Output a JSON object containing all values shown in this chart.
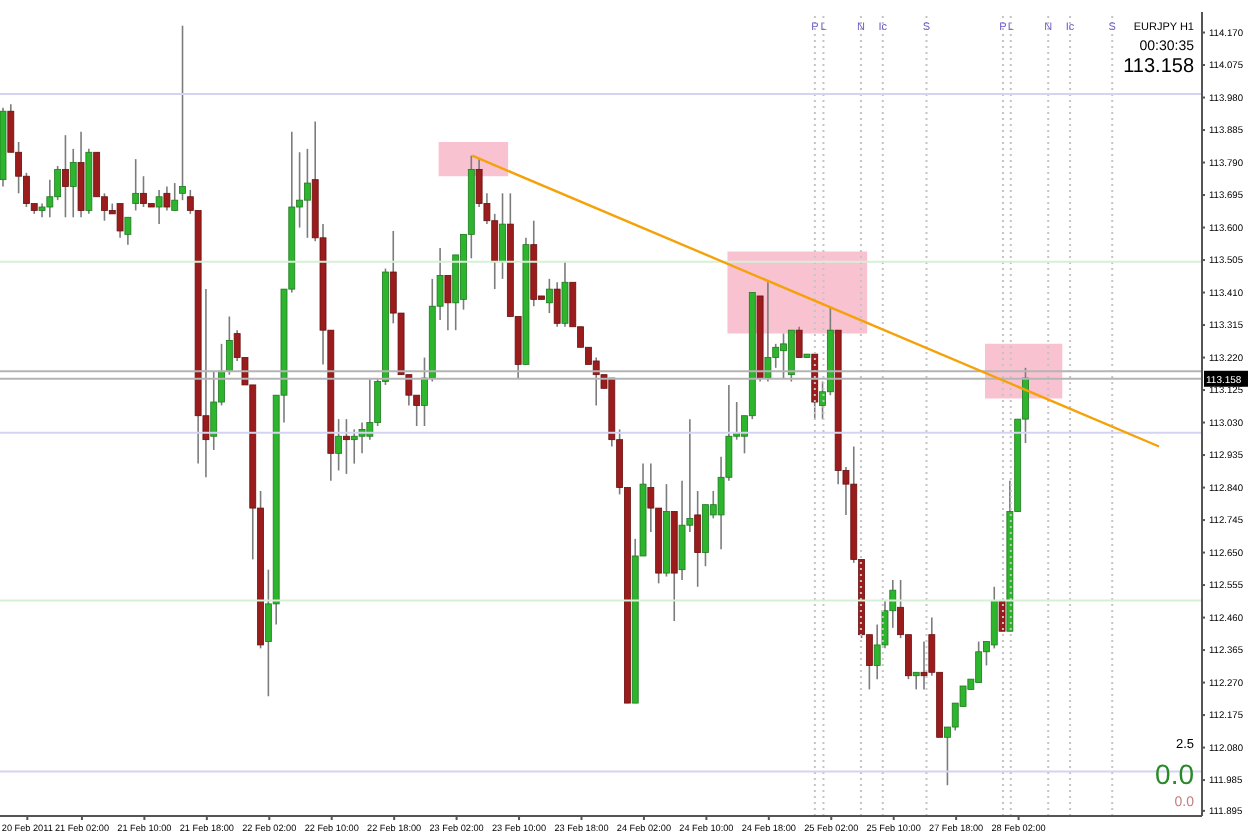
{
  "chart_data": {
    "type": "candlestick",
    "categories": [
      null,
      null,
      null,
      "20 Feb 2011",
      null,
      null,
      null,
      null,
      null,
      null,
      "21 Feb 02:00",
      null,
      null,
      null,
      null,
      null,
      null,
      null,
      "21 Feb 10:00",
      null,
      null,
      null,
      null,
      null,
      null,
      null,
      "21 Feb 18:00",
      null,
      null,
      null,
      null,
      null,
      null,
      null,
      "22 Feb 02:00",
      null,
      null,
      null,
      null,
      null,
      null,
      null,
      "22 Feb 10:00",
      null,
      null,
      null,
      null,
      null,
      null,
      null,
      "22 Feb 18:00",
      null,
      null,
      null,
      null,
      null,
      null,
      null,
      "23 Feb 02:00",
      null,
      null,
      null,
      null,
      null,
      null,
      null,
      "23 Feb 10:00",
      null,
      null,
      null,
      null,
      null,
      null,
      null,
      "23 Feb 18:00",
      null,
      null,
      null,
      null,
      null,
      null,
      null,
      "24 Feb 02:00",
      null,
      null,
      null,
      null,
      null,
      null,
      null,
      "24 Feb 10:00",
      null,
      null,
      null,
      null,
      null,
      null,
      null,
      "24 Feb 18:00",
      null,
      null,
      null,
      null,
      null,
      null,
      null,
      "25 Feb 02:00",
      null,
      null,
      null,
      null,
      null,
      null,
      null,
      "25 Feb 10:00",
      null,
      null,
      null,
      null,
      null,
      null,
      null,
      "27 Feb 18:00",
      null,
      null,
      null,
      null,
      null,
      null,
      null,
      "28 Feb 02:00",
      null,
      null,
      null,
      null,
      null,
      null,
      null,
      null,
      null,
      null,
      null,
      null,
      null,
      null,
      null,
      null,
      null,
      null,
      null,
      null,
      null,
      null,
      null
    ],
    "ohlc": [
      [
        113.74,
        113.95,
        113.72,
        113.94
      ],
      [
        113.94,
        113.96,
        113.82,
        113.82
      ],
      [
        113.82,
        113.85,
        113.7,
        113.75
      ],
      [
        113.75,
        113.76,
        113.66,
        113.67
      ],
      [
        113.67,
        113.67,
        113.64,
        113.65
      ],
      [
        113.65,
        113.67,
        113.63,
        113.66
      ],
      [
        113.66,
        113.74,
        113.63,
        113.69
      ],
      [
        113.69,
        113.78,
        113.68,
        113.77
      ],
      [
        113.77,
        113.87,
        113.63,
        113.72
      ],
      [
        113.72,
        113.83,
        113.63,
        113.79
      ],
      [
        113.79,
        113.88,
        113.63,
        113.65
      ],
      [
        113.65,
        113.83,
        113.64,
        113.82
      ],
      [
        113.82,
        113.82,
        113.69,
        113.69
      ],
      [
        113.69,
        113.7,
        113.62,
        113.65
      ],
      [
        113.65,
        113.67,
        113.64,
        113.64
      ],
      [
        113.67,
        113.67,
        113.57,
        113.59
      ],
      [
        113.58,
        113.63,
        113.55,
        113.63
      ],
      [
        113.67,
        113.8,
        113.65,
        113.7
      ],
      [
        113.7,
        113.75,
        113.66,
        113.67
      ],
      [
        113.67,
        113.67,
        113.66,
        113.66
      ],
      [
        113.66,
        113.71,
        113.61,
        113.69
      ],
      [
        113.7,
        113.72,
        113.65,
        113.66
      ],
      [
        113.65,
        113.73,
        113.65,
        113.68
      ],
      [
        113.7,
        114.19,
        113.68,
        113.72
      ],
      [
        113.69,
        113.71,
        113.64,
        113.65
      ],
      [
        113.65,
        113.65,
        112.91,
        113.05
      ],
      [
        113.05,
        113.42,
        112.87,
        112.98
      ],
      [
        112.99,
        113.18,
        112.95,
        113.09
      ],
      [
        113.09,
        113.26,
        113.08,
        113.18
      ],
      [
        113.18,
        113.34,
        113.17,
        113.27
      ],
      [
        113.29,
        113.3,
        113.21,
        113.22
      ],
      [
        113.22,
        113.22,
        113.14,
        113.14
      ],
      [
        113.14,
        113.14,
        112.63,
        112.78
      ],
      [
        112.78,
        112.83,
        112.37,
        112.38
      ],
      [
        112.39,
        112.6,
        112.23,
        112.5
      ],
      [
        112.5,
        113.11,
        112.44,
        113.11
      ],
      [
        113.11,
        113.42,
        113.03,
        113.42
      ],
      [
        113.42,
        113.88,
        113.41,
        113.66
      ],
      [
        113.66,
        113.82,
        113.6,
        113.68
      ],
      [
        113.68,
        113.83,
        113.57,
        113.73
      ],
      [
        113.74,
        113.91,
        113.56,
        113.57
      ],
      [
        113.57,
        113.61,
        113.2,
        113.3
      ],
      [
        113.3,
        113.3,
        112.86,
        112.94
      ],
      [
        112.94,
        113.04,
        112.89,
        112.99
      ],
      [
        112.99,
        113.04,
        112.88,
        112.98
      ],
      [
        112.98,
        113.01,
        112.91,
        112.99
      ],
      [
        112.99,
        113.03,
        112.94,
        113.01
      ],
      [
        112.99,
        113.16,
        112.98,
        113.03
      ],
      [
        113.03,
        113.16,
        113.02,
        113.15
      ],
      [
        113.15,
        113.48,
        113.14,
        113.47
      ],
      [
        113.47,
        113.59,
        113.32,
        113.35
      ],
      [
        113.35,
        113.35,
        113.17,
        113.17
      ],
      [
        113.17,
        113.17,
        113.08,
        113.11
      ],
      [
        113.11,
        113.11,
        113.02,
        113.08
      ],
      [
        113.08,
        113.22,
        113.02,
        113.16
      ],
      [
        113.16,
        113.45,
        113.15,
        113.37
      ],
      [
        113.37,
        113.54,
        113.33,
        113.46
      ],
      [
        113.46,
        113.46,
        113.3,
        113.38
      ],
      [
        113.38,
        113.52,
        113.3,
        113.52
      ],
      [
        113.39,
        113.58,
        113.36,
        113.58
      ],
      [
        113.58,
        113.81,
        113.51,
        113.77
      ],
      [
        113.77,
        113.8,
        113.66,
        113.67
      ],
      [
        113.67,
        113.7,
        113.61,
        113.62
      ],
      [
        113.62,
        113.64,
        113.42,
        113.5
      ],
      [
        113.5,
        113.7,
        113.45,
        113.61
      ],
      [
        113.61,
        113.7,
        113.34,
        113.34
      ],
      [
        113.34,
        113.34,
        113.16,
        113.2
      ],
      [
        113.2,
        113.57,
        113.2,
        113.55
      ],
      [
        113.55,
        113.62,
        113.37,
        113.39
      ],
      [
        113.4,
        113.4,
        113.39,
        113.39
      ],
      [
        113.38,
        113.45,
        113.35,
        113.42
      ],
      [
        113.42,
        113.44,
        113.31,
        113.32
      ],
      [
        113.32,
        113.5,
        113.31,
        113.44
      ],
      [
        113.44,
        113.44,
        113.31,
        113.31
      ],
      [
        113.31,
        113.31,
        113.25,
        113.25
      ],
      [
        113.25,
        113.25,
        113.2,
        113.2
      ],
      [
        113.21,
        113.22,
        113.08,
        113.17
      ],
      [
        113.17,
        113.17,
        113.13,
        113.13
      ],
      [
        113.16,
        113.16,
        112.96,
        112.98
      ],
      [
        112.98,
        113.01,
        112.82,
        112.84
      ],
      [
        112.84,
        112.84,
        112.21,
        112.21
      ],
      [
        112.21,
        112.69,
        112.21,
        112.64
      ],
      [
        112.64,
        112.91,
        112.64,
        112.85
      ],
      [
        112.84,
        112.91,
        112.71,
        112.78
      ],
      [
        112.78,
        112.78,
        112.56,
        112.59
      ],
      [
        112.59,
        112.85,
        112.58,
        112.77
      ],
      [
        112.77,
        112.77,
        112.45,
        112.59
      ],
      [
        112.6,
        112.86,
        112.57,
        112.73
      ],
      [
        112.73,
        113.04,
        112.71,
        112.75
      ],
      [
        112.76,
        112.83,
        112.55,
        112.65
      ],
      [
        112.65,
        112.79,
        112.61,
        112.79
      ],
      [
        112.76,
        112.83,
        112.75,
        112.79
      ],
      [
        112.76,
        112.93,
        112.66,
        112.87
      ],
      [
        112.87,
        113.14,
        112.86,
        112.99
      ],
      [
        112.99,
        113.09,
        112.98,
        113.0
      ],
      [
        112.99,
        113.05,
        112.94,
        113.05
      ],
      [
        113.05,
        113.41,
        113.04,
        113.41
      ],
      [
        113.4,
        113.4,
        113.15,
        113.16
      ],
      [
        113.16,
        113.44,
        113.15,
        113.22
      ],
      [
        113.22,
        113.26,
        113.19,
        113.25
      ],
      [
        113.24,
        113.29,
        113.16,
        113.26
      ],
      [
        113.17,
        113.3,
        113.15,
        113.3
      ],
      [
        113.3,
        113.31,
        113.22,
        113.22
      ],
      [
        113.22,
        113.23,
        113.22,
        113.23
      ],
      [
        113.23,
        113.23,
        113.04,
        113.09
      ],
      [
        113.08,
        113.15,
        113.04,
        113.12
      ],
      [
        113.12,
        113.37,
        113.11,
        113.3
      ],
      [
        113.3,
        113.3,
        112.85,
        112.89
      ],
      [
        112.89,
        112.9,
        112.76,
        112.85
      ],
      [
        112.85,
        112.96,
        112.62,
        112.63
      ],
      [
        112.63,
        112.63,
        112.4,
        112.41
      ],
      [
        112.41,
        112.41,
        112.25,
        112.32
      ],
      [
        112.32,
        112.44,
        112.28,
        112.38
      ],
      [
        112.38,
        112.51,
        112.37,
        112.48
      ],
      [
        112.48,
        112.57,
        112.43,
        112.54
      ],
      [
        112.49,
        112.57,
        112.4,
        112.41
      ],
      [
        112.41,
        112.41,
        112.28,
        112.29
      ],
      [
        112.29,
        112.3,
        112.25,
        112.3
      ],
      [
        112.3,
        112.39,
        112.25,
        112.29
      ],
      [
        112.41,
        112.46,
        112.29,
        112.3
      ],
      [
        112.3,
        112.3,
        112.11,
        112.11
      ],
      [
        112.11,
        112.14,
        111.97,
        112.14
      ],
      [
        112.14,
        112.21,
        112.13,
        112.21
      ],
      [
        112.2,
        112.26,
        112.2,
        112.26
      ],
      [
        112.25,
        112.28,
        112.25,
        112.28
      ],
      [
        112.27,
        112.39,
        112.27,
        112.36
      ],
      [
        112.36,
        112.39,
        112.32,
        112.39
      ],
      [
        112.38,
        112.55,
        112.37,
        112.51
      ],
      [
        112.51,
        112.51,
        112.42,
        112.42
      ],
      [
        112.42,
        112.86,
        112.42,
        112.77
      ],
      [
        112.77,
        113.04,
        112.77,
        113.04
      ],
      [
        113.04,
        113.19,
        112.97,
        113.16
      ],
      null,
      null,
      null,
      null,
      null,
      null,
      null,
      null,
      null,
      null,
      null,
      null,
      null,
      null,
      null,
      null,
      null,
      null,
      null,
      null,
      null,
      null
    ],
    "series": [
      {
        "type": "line",
        "color": "#f5a20a",
        "values": [
          null,
          null,
          null,
          null,
          null,
          null,
          null,
          null,
          null,
          null,
          null,
          null,
          null,
          null,
          null,
          null,
          null,
          null,
          null,
          null,
          null,
          null,
          null,
          null,
          null,
          null,
          null,
          null,
          null,
          null,
          null,
          null,
          null,
          null,
          null,
          null,
          null,
          null,
          null,
          null,
          null,
          null,
          null,
          null,
          null,
          null,
          null,
          null,
          null,
          null,
          null,
          null,
          null,
          null,
          null,
          null,
          null,
          null,
          null,
          null,
          113.81,
          null,
          null,
          null,
          null,
          null,
          null,
          null,
          null,
          null,
          null,
          null,
          null,
          null,
          null,
          null,
          null,
          null,
          null,
          null,
          null,
          null,
          null,
          null,
          null,
          null,
          null,
          null,
          null,
          null,
          null,
          null,
          null,
          null,
          null,
          null,
          null,
          null,
          null,
          null,
          null,
          null,
          null,
          null,
          null,
          null,
          null,
          null,
          null,
          null,
          null,
          null,
          null,
          null,
          null,
          null,
          null,
          null,
          null,
          null,
          null,
          null,
          null,
          null,
          null,
          null,
          null,
          null,
          null,
          null,
          null,
          null,
          null,
          null,
          null,
          null,
          null,
          null,
          null,
          null,
          null,
          null,
          null,
          null,
          null,
          null,
          null,
          null,
          112.96,
          null,
          null,
          null,
          null,
          null
        ]
      }
    ],
    "ylim": [
      111.88,
      114.23
    ],
    "yticks": [
      {
        "value": 114.17,
        "label": "114.170"
      },
      {
        "value": 114.075,
        "label": "114.075"
      },
      {
        "value": 113.98,
        "label": "113.980"
      },
      {
        "value": 113.885,
        "label": "113.885"
      },
      {
        "value": 113.79,
        "label": "113.790"
      },
      {
        "value": 113.695,
        "label": "113.695"
      },
      {
        "value": 113.6,
        "label": "113.600"
      },
      {
        "value": 113.505,
        "label": "113.505"
      },
      {
        "value": 113.41,
        "label": "113.410"
      },
      {
        "value": 113.315,
        "label": "113.315"
      },
      {
        "value": 113.22,
        "label": "113.220"
      },
      {
        "value": 113.125,
        "label": "113.125"
      },
      {
        "value": 113.03,
        "label": "113.030"
      },
      {
        "value": 112.935,
        "label": "112.935"
      },
      {
        "value": 112.84,
        "label": "112.840"
      },
      {
        "value": 112.745,
        "label": "112.745"
      },
      {
        "value": 112.65,
        "label": "112.650"
      },
      {
        "value": 112.555,
        "label": "112.555"
      },
      {
        "value": 112.46,
        "label": "112.460"
      },
      {
        "value": 112.365,
        "label": "112.365"
      },
      {
        "value": 112.27,
        "label": "112.270"
      },
      {
        "value": 112.175,
        "label": "112.175"
      },
      {
        "value": 112.08,
        "label": "112.080"
      },
      {
        "value": 111.985,
        "label": "111.985"
      },
      {
        "value": 111.895,
        "label": "111.895"
      }
    ],
    "ref_lines": [
      {
        "axis": "y",
        "value": 113.99,
        "color": "#d4d4f2"
      },
      {
        "axis": "y",
        "value": 113.5,
        "color": "#d6f0d6"
      },
      {
        "axis": "y",
        "value": 113.0,
        "color": "#d4d4f2"
      },
      {
        "axis": "y",
        "value": 112.51,
        "color": "#d6f0d6"
      },
      {
        "axis": "y",
        "value": 112.01,
        "color": "#d4d4f2"
      },
      {
        "axis": "y",
        "value": 113.18,
        "color": "#b4b4b4"
      },
      {
        "axis": "y",
        "value": 113.158,
        "color": "#b4b4b4",
        "label": "113.158"
      }
    ],
    "bands": [
      {
        "axis": "y",
        "from": 113.75,
        "to": 113.85,
        "color": "#f7b3c4"
      },
      {
        "axis": "y",
        "from": 113.29,
        "to": 113.53,
        "color": "#f7b3c4"
      },
      {
        "axis": "y",
        "from": 113.1,
        "to": 113.26,
        "color": "#f7b3c4"
      }
    ],
    "annotations": [
      "EURJPY H1",
      "00:30:35",
      "113.158",
      "2.5",
      "0.0",
      "0.0",
      "P",
      "L",
      "N",
      "Ic",
      "S",
      "P",
      "L",
      "N",
      "Ic",
      "S"
    ]
  }
}
